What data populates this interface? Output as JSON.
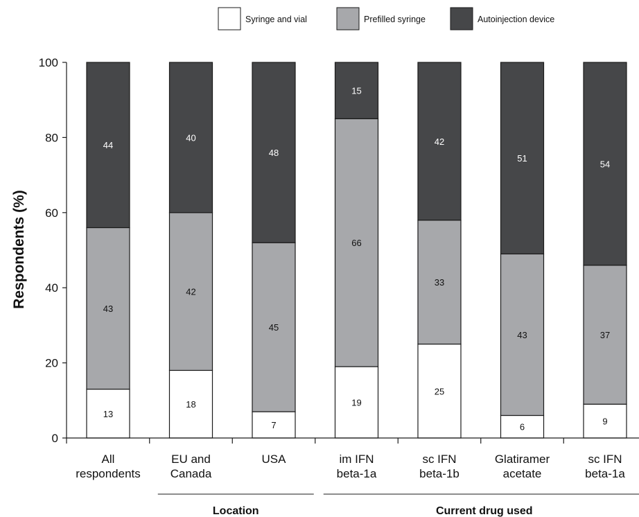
{
  "chart_data": {
    "type": "bar",
    "stacked": true,
    "categories": [
      [
        "All",
        "respondents"
      ],
      [
        "EU and",
        "Canada"
      ],
      [
        "USA"
      ],
      [
        "im IFN",
        "beta-1a"
      ],
      [
        "sc IFN",
        "beta-1b"
      ],
      [
        "Glatiramer",
        "acetate"
      ],
      [
        "sc IFN",
        "beta-1a"
      ]
    ],
    "series": [
      {
        "name": "Syringe and vial",
        "color": "#ffffff",
        "values": [
          13,
          18,
          7,
          19,
          25,
          6,
          9
        ],
        "labels": [
          "13",
          "18",
          "7",
          "19",
          "25",
          "6",
          "9"
        ]
      },
      {
        "name": "Prefilled syringe",
        "color": "#a7a8ab",
        "values": [
          43,
          42,
          45,
          66,
          33,
          43,
          37
        ],
        "labels": [
          "43",
          "42",
          "45",
          "66",
          "33",
          "43",
          "37"
        ]
      },
      {
        "name": "Autoinjection device",
        "color": "#464749",
        "values": [
          44,
          40,
          48,
          15,
          42,
          51,
          54
        ],
        "labels": [
          "44",
          "40",
          "48",
          "15",
          "42",
          "51",
          "54"
        ]
      }
    ],
    "ylabel": "Respondents (%)",
    "ylim": [
      0,
      100
    ],
    "yticks": [
      0,
      20,
      40,
      60,
      80,
      100
    ],
    "ytick_labels": [
      "0",
      "20",
      "40",
      "60",
      "80",
      "100"
    ],
    "legend_position": "top",
    "groups": [
      {
        "label": "Location",
        "first": 1,
        "last": 2
      },
      {
        "label": "Current drug used",
        "first": 3,
        "last": 6
      }
    ]
  }
}
